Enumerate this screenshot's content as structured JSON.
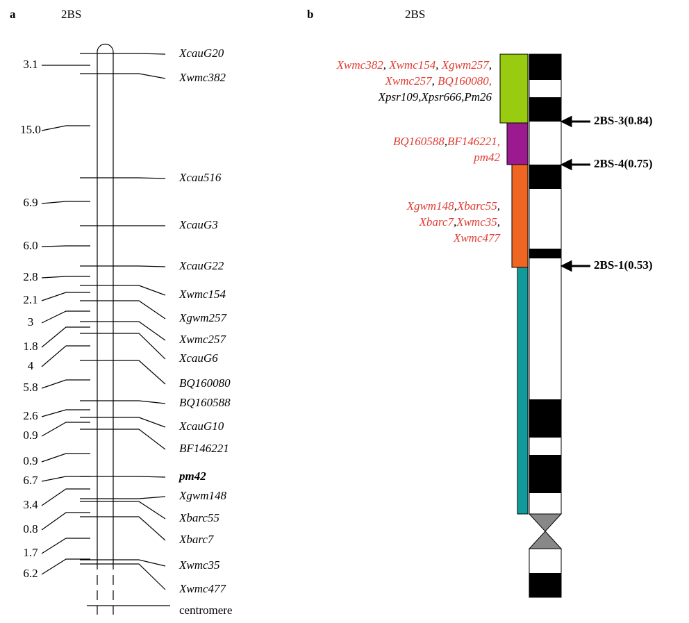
{
  "panel_a": {
    "label": "a",
    "title": "2BS",
    "distances": [
      "3.1",
      "15.0",
      "6.9",
      "6.0",
      "2.8",
      "2.1",
      "3",
      "1.8",
      "4",
      "5.8",
      "2.6",
      "0.9",
      "0.9",
      "6.7",
      "3.4",
      "0.8",
      "1.7",
      "6.2"
    ],
    "markers": [
      {
        "text": "XcauG20"
      },
      {
        "text": "Xwmc382"
      },
      {
        "text": "Xcau516"
      },
      {
        "text": "XcauG3"
      },
      {
        "text": "XcauG22"
      },
      {
        "text": "Xwmc154"
      },
      {
        "text": "Xgwm257"
      },
      {
        "text": "Xwmc257"
      },
      {
        "text": "XcauG6"
      },
      {
        "text": "BQ160080"
      },
      {
        "text": "BQ160588"
      },
      {
        "text": "XcauG10"
      },
      {
        "text": "BF146221"
      },
      {
        "text": "pm42",
        "bold": true
      },
      {
        "text": "Xgwm148"
      },
      {
        "text": "Xbarc55"
      },
      {
        "text": "Xbarc7"
      },
      {
        "text": "Xwmc35"
      },
      {
        "text": "Xwmc477"
      }
    ],
    "centromere": "centromere"
  },
  "panel_b": {
    "label": "b",
    "title": "2BS",
    "groups": [
      {
        "color": "#99cc11",
        "lines": [
          [
            {
              "text": "Xwmc382",
              "color": "#e03c31"
            },
            {
              "text": ", ",
              "color": "#000000"
            },
            {
              "text": "Xwmc154",
              "color": "#e03c31"
            },
            {
              "text": ", ",
              "color": "#000000"
            },
            {
              "text": "Xgwm257",
              "color": "#e03c31"
            },
            {
              "text": ",",
              "color": "#000000"
            }
          ],
          [
            {
              "text": "Xwmc257",
              "color": "#e03c31"
            },
            {
              "text": ", ",
              "color": "#000000"
            },
            {
              "text": "BQ160080,",
              "color": "#e03c31"
            }
          ],
          [
            {
              "text": "Xpsr109,Xpsr666,Pm26",
              "color": "#000000"
            }
          ]
        ]
      },
      {
        "color": "#9b1a8f",
        "lines": [
          [
            {
              "text": "BQ160588",
              "color": "#e03c31"
            },
            {
              "text": ",",
              "color": "#000000"
            },
            {
              "text": "BF146221,",
              "color": "#e03c31"
            }
          ],
          [
            {
              "text": "pm42",
              "color": "#e03c31"
            }
          ]
        ]
      },
      {
        "color": "#ee6622",
        "lines": [
          [
            {
              "text": "Xgwm148",
              "color": "#e03c31"
            },
            {
              "text": ",",
              "color": "#000000"
            },
            {
              "text": "Xbarc55",
              "color": "#e03c31"
            },
            {
              "text": ",",
              "color": "#000000"
            }
          ],
          [
            {
              "text": "Xbarc7",
              "color": "#e03c31"
            },
            {
              "text": ",",
              "color": "#000000"
            },
            {
              "text": "Xwmc35",
              "color": "#e03c31"
            },
            {
              "text": ",",
              "color": "#000000"
            }
          ],
          [
            {
              "text": "Xwmc477",
              "color": "#e03c31"
            }
          ]
        ]
      },
      {
        "color": "#129a9a",
        "lines": []
      }
    ],
    "breakpoints": [
      "2BS-3(0.84)",
      "2BS-4(0.75)",
      "2BS-1(0.53)"
    ]
  }
}
